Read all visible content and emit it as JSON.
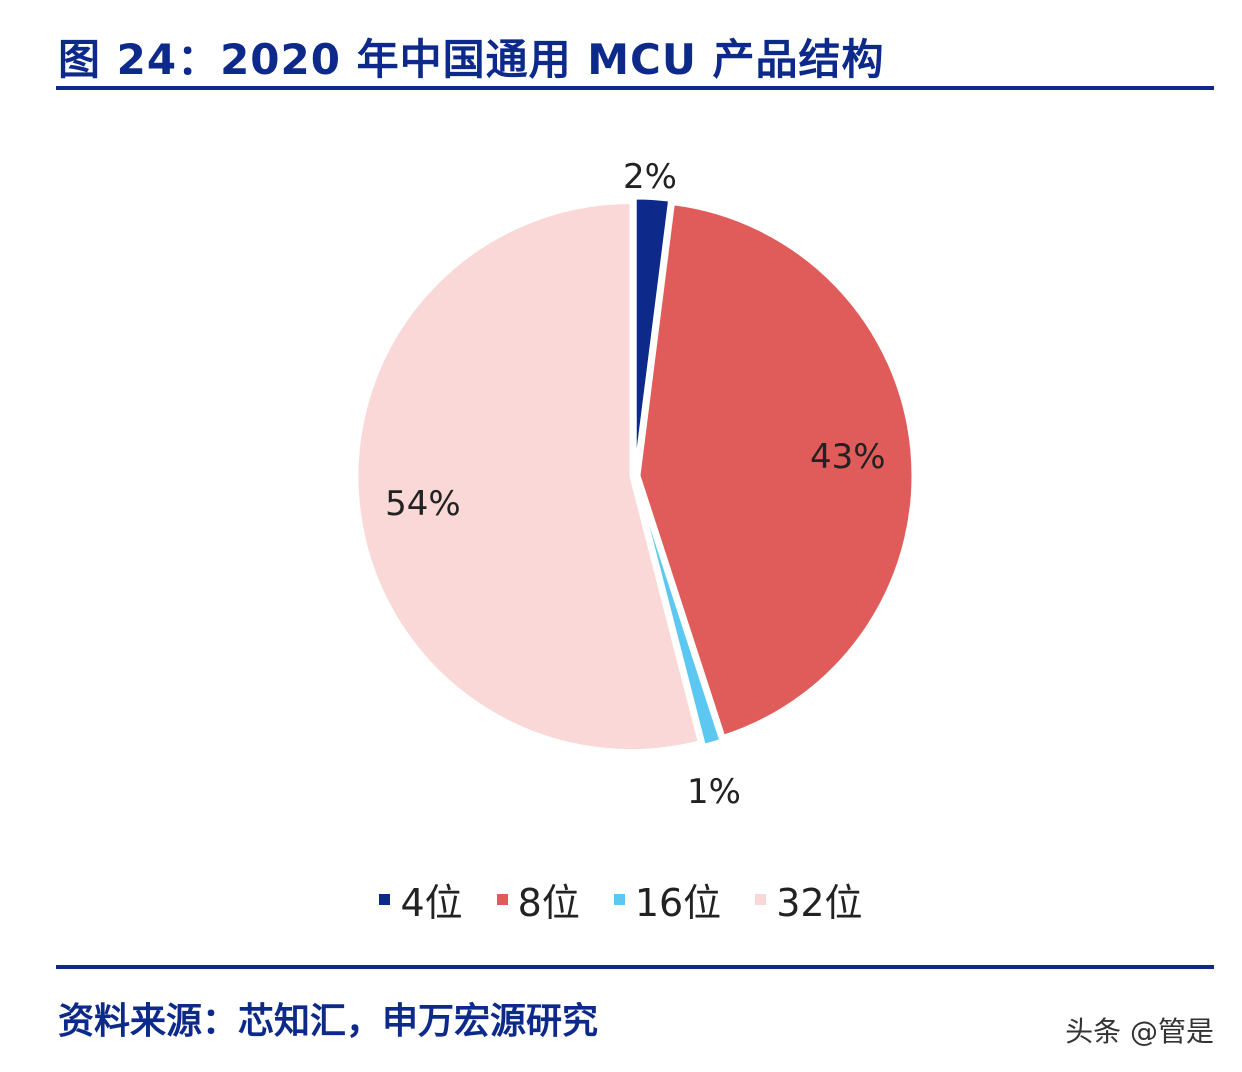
{
  "title": "图 24：2020 年中国通用 MCU 产品结构",
  "source": "资料来源：芯知汇，申万宏源研究",
  "watermark": "头条 @管是",
  "chart_data": {
    "type": "pie",
    "title": "图 24：2020 年中国通用 MCU 产品结构",
    "categories": [
      "4位",
      "8位",
      "16位",
      "32位"
    ],
    "values": [
      2,
      43,
      1,
      54
    ],
    "data_labels": [
      "2%",
      "43%",
      "1%",
      "54%"
    ],
    "colors": [
      "#0d2a8a",
      "#e05c5a",
      "#5cc8f2",
      "#f9d8d7"
    ],
    "start_angle": "top, clockwise",
    "legend_position": "bottom"
  }
}
